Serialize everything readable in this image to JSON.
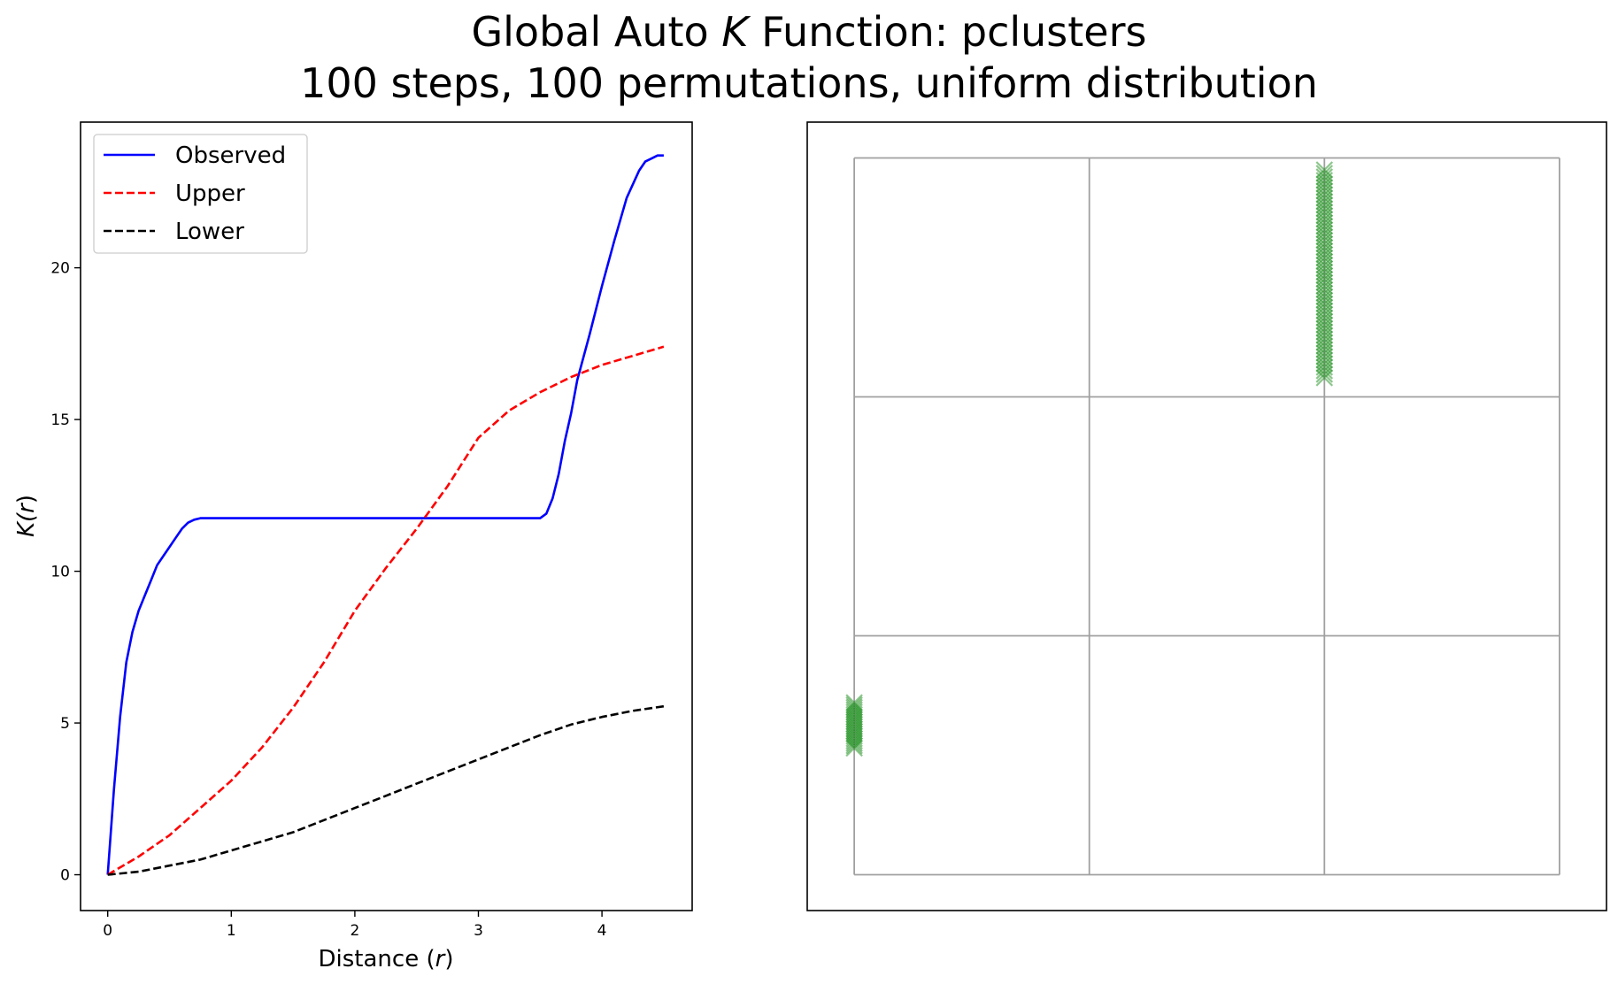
{
  "title": {
    "line1_prefix": "Global Auto ",
    "line1_symbol": "K",
    "line1_suffix": " Function: pclusters",
    "line2": "100 steps, 100 permutations, uniform distribution"
  },
  "colors": {
    "observed": "#0000ff",
    "upper": "#ff0000",
    "lower": "#000000",
    "points": "#008000",
    "grid": "#a0a0a0"
  },
  "chart_data": [
    {
      "type": "line",
      "title": "",
      "xlabel_prefix": "Distance (",
      "xlabel_symbol": "r",
      "xlabel_suffix": ")",
      "ylabel_prefix": "K(",
      "ylabel_symbol": "r",
      "ylabel_suffix": ")",
      "xlim": [
        -0.22,
        4.73
      ],
      "ylim": [
        -1.18,
        24.8
      ],
      "xticks": [
        0,
        1,
        2,
        3,
        4
      ],
      "yticks": [
        0,
        5,
        10,
        15,
        20
      ],
      "grid": false,
      "legend_position": "top-left",
      "series": [
        {
          "name": "Observed",
          "style": "solid",
          "x": [
            0,
            0.05,
            0.1,
            0.15,
            0.2,
            0.25,
            0.3,
            0.35,
            0.4,
            0.45,
            0.5,
            0.55,
            0.6,
            0.65,
            0.7,
            0.75,
            0.8,
            1.0,
            1.5,
            2.0,
            2.5,
            3.0,
            3.5,
            3.55,
            3.6,
            3.65,
            3.7,
            3.75,
            3.8,
            3.9,
            4.0,
            4.1,
            4.2,
            4.3,
            4.35,
            4.4,
            4.45,
            4.5
          ],
          "y": [
            0,
            2.8,
            5.2,
            7.0,
            8.0,
            8.7,
            9.2,
            9.7,
            10.2,
            10.5,
            10.8,
            11.1,
            11.4,
            11.6,
            11.7,
            11.75,
            11.75,
            11.75,
            11.75,
            11.75,
            11.75,
            11.75,
            11.75,
            11.9,
            12.4,
            13.2,
            14.3,
            15.2,
            16.3,
            17.8,
            19.4,
            20.9,
            22.3,
            23.2,
            23.5,
            23.6,
            23.7,
            23.7
          ]
        },
        {
          "name": "Upper",
          "style": "dashed",
          "x": [
            0,
            0.25,
            0.5,
            0.75,
            1.0,
            1.25,
            1.5,
            1.75,
            2.0,
            2.25,
            2.5,
            2.75,
            3.0,
            3.25,
            3.5,
            3.75,
            4.0,
            4.25,
            4.5
          ],
          "y": [
            0,
            0.6,
            1.3,
            2.2,
            3.1,
            4.2,
            5.5,
            7.0,
            8.7,
            10.1,
            11.4,
            12.8,
            14.4,
            15.3,
            15.9,
            16.4,
            16.8,
            17.1,
            17.4
          ]
        },
        {
          "name": "Lower",
          "style": "dashed",
          "x": [
            0,
            0.25,
            0.5,
            0.75,
            1.0,
            1.25,
            1.5,
            1.75,
            2.0,
            2.25,
            2.5,
            2.75,
            3.0,
            3.25,
            3.5,
            3.75,
            4.0,
            4.25,
            4.5
          ],
          "y": [
            0,
            0.1,
            0.3,
            0.5,
            0.8,
            1.1,
            1.4,
            1.8,
            2.2,
            2.6,
            3.0,
            3.4,
            3.8,
            4.2,
            4.6,
            4.95,
            5.2,
            5.4,
            5.55
          ]
        }
      ]
    },
    {
      "type": "scatter",
      "title": "",
      "xlabel": "",
      "ylabel": "",
      "xlim": [
        -0.2,
        3.2
      ],
      "ylim": [
        -0.15,
        3.15
      ],
      "grid": true,
      "grid_lines": [
        0,
        1,
        2,
        3
      ],
      "marker": "x",
      "clusters": [
        {
          "x": 2.0,
          "y_min": 2.08,
          "y_max": 2.95,
          "count": 60
        },
        {
          "x": 0.0,
          "y_min": 0.53,
          "y_max": 0.72,
          "count": 20
        }
      ]
    }
  ]
}
